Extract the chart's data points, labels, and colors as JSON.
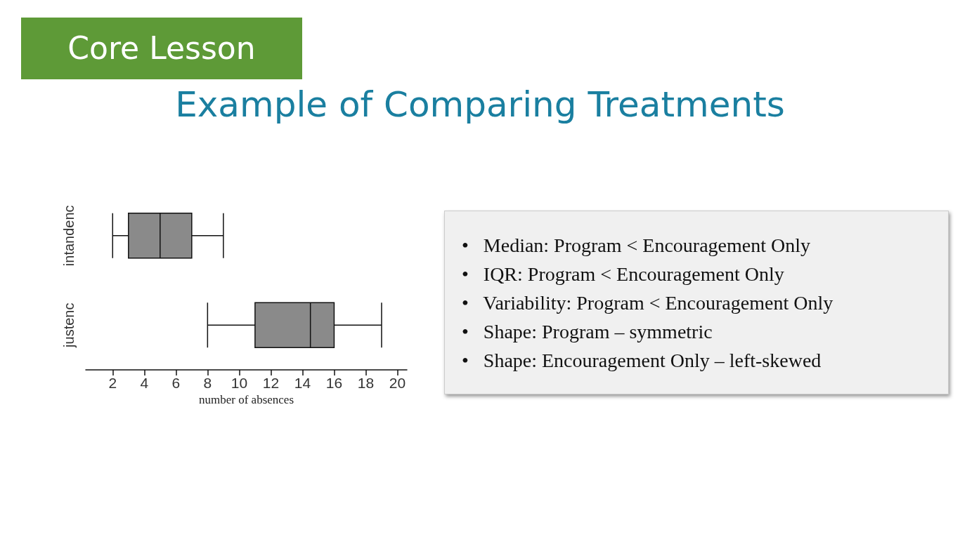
{
  "chart_data": {
    "type": "box",
    "title": "Example of Comparing Treatments",
    "xlabel": "number of absences",
    "orientation": "horizontal",
    "categories": [
      "intandenc",
      "justenc"
    ],
    "series": [
      {
        "color": "#8a8a8a",
        "boxes": [
          {
            "low": 2,
            "q1": 3,
            "median": 5,
            "q3": 7,
            "high": 9
          },
          {
            "low": 8,
            "q1": 11,
            "median": 14.5,
            "q3": 16,
            "high": 19
          }
        ]
      }
    ],
    "xlim": [
      0.3,
      20.6
    ],
    "xticks": [
      2,
      4,
      6,
      8,
      10,
      12,
      14,
      16,
      18,
      20
    ],
    "grid": false,
    "annotations": [
      "Core Lesson",
      "•   Median: Program < Encouragement Only",
      "•   IQR: Program < Encouragement Only",
      "•   Variability: Program < Encouragement Only",
      "•   Shape: Program – symmetric",
      "•   Shape: Encouragement Only – left-skewed"
    ]
  }
}
